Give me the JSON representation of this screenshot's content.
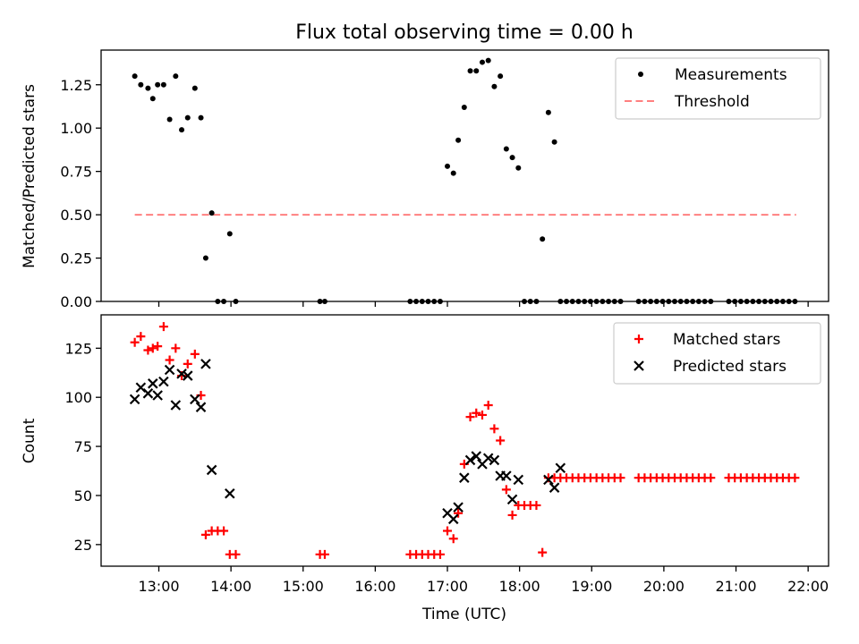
{
  "title": "Flux total observing time = 0.00 h",
  "colors": {
    "measurements": "#000000",
    "threshold": "#ff8080",
    "matched": "#ff0000",
    "predicted": "#000000"
  },
  "chart_data": [
    {
      "type": "scatter",
      "ylabel": "Matched/Predicted stars",
      "xlabel": "",
      "ylim": [
        0,
        1.45
      ],
      "yticks": [
        "0.00",
        "0.25",
        "0.50",
        "0.75",
        "1.00",
        "1.25"
      ],
      "legend": {
        "placement": "top-right",
        "entries": [
          "Measurements",
          "Threshold"
        ]
      },
      "threshold": {
        "name": "Threshold",
        "value": 0.5,
        "x_start": "12:40",
        "x_end": "21:50",
        "style": "dashed"
      },
      "series": [
        {
          "name": "Measurements",
          "marker": "dot",
          "points": [
            [
              "12:40",
              1.3
            ],
            [
              "12:45",
              1.25
            ],
            [
              "12:51",
              1.23
            ],
            [
              "12:55",
              1.17
            ],
            [
              "12:59",
              1.25
            ],
            [
              "13:04",
              1.25
            ],
            [
              "13:09",
              1.05
            ],
            [
              "13:14",
              1.3
            ],
            [
              "13:19",
              0.99
            ],
            [
              "13:24",
              1.06
            ],
            [
              "13:30",
              1.23
            ],
            [
              "13:35",
              1.06
            ],
            [
              "13:39",
              0.25
            ],
            [
              "13:44",
              0.51
            ],
            [
              "13:49",
              0.0
            ],
            [
              "13:54",
              0.0
            ],
            [
              "13:59",
              0.39
            ],
            [
              "14:04",
              0.0
            ],
            [
              "15:14",
              0.0
            ],
            [
              "15:18",
              0.0
            ],
            [
              "16:29",
              0.0
            ],
            [
              "16:34",
              0.0
            ],
            [
              "16:39",
              0.0
            ],
            [
              "16:44",
              0.0
            ],
            [
              "16:49",
              0.0
            ],
            [
              "16:54",
              0.0
            ],
            [
              "17:00",
              0.78
            ],
            [
              "17:05",
              0.74
            ],
            [
              "17:09",
              0.93
            ],
            [
              "17:14",
              1.12
            ],
            [
              "17:19",
              1.33
            ],
            [
              "17:24",
              1.33
            ],
            [
              "17:29",
              1.38
            ],
            [
              "17:34",
              1.39
            ],
            [
              "17:39",
              1.24
            ],
            [
              "17:44",
              1.3
            ],
            [
              "17:49",
              0.88
            ],
            [
              "17:54",
              0.83
            ],
            [
              "17:59",
              0.77
            ],
            [
              "18:04",
              0.0
            ],
            [
              "18:09",
              0.0
            ],
            [
              "18:14",
              0.0
            ],
            [
              "18:19",
              0.36
            ],
            [
              "18:24",
              1.09
            ],
            [
              "18:29",
              0.92
            ],
            [
              "18:34",
              0.0
            ],
            [
              "18:39",
              0.0
            ],
            [
              "18:44",
              0.0
            ],
            [
              "18:49",
              0.0
            ],
            [
              "18:54",
              0.0
            ],
            [
              "18:59",
              0.0
            ],
            [
              "19:04",
              0.0
            ],
            [
              "19:09",
              0.0
            ],
            [
              "19:14",
              0.0
            ],
            [
              "19:19",
              0.0
            ],
            [
              "19:24",
              0.0
            ],
            [
              "19:39",
              0.0
            ],
            [
              "19:44",
              0.0
            ],
            [
              "19:49",
              0.0
            ],
            [
              "19:54",
              0.0
            ],
            [
              "19:59",
              0.0
            ],
            [
              "20:04",
              0.0
            ],
            [
              "20:09",
              0.0
            ],
            [
              "20:14",
              0.0
            ],
            [
              "20:19",
              0.0
            ],
            [
              "20:24",
              0.0
            ],
            [
              "20:29",
              0.0
            ],
            [
              "20:34",
              0.0
            ],
            [
              "20:39",
              0.0
            ],
            [
              "20:54",
              0.0
            ],
            [
              "20:59",
              0.0
            ],
            [
              "21:04",
              0.0
            ],
            [
              "21:09",
              0.0
            ],
            [
              "21:14",
              0.0
            ],
            [
              "21:19",
              0.0
            ],
            [
              "21:24",
              0.0
            ],
            [
              "21:29",
              0.0
            ],
            [
              "21:34",
              0.0
            ],
            [
              "21:39",
              0.0
            ],
            [
              "21:44",
              0.0
            ],
            [
              "21:49",
              0.0
            ]
          ]
        }
      ]
    },
    {
      "type": "scatter",
      "ylabel": "Count",
      "xlabel": "Time (UTC)",
      "ylim": [
        14,
        142
      ],
      "yticks": [
        "25",
        "50",
        "75",
        "100",
        "125"
      ],
      "legend": {
        "placement": "top-right",
        "entries": [
          "Matched stars",
          "Predicted stars"
        ]
      },
      "series": [
        {
          "name": "Matched stars",
          "marker": "plus",
          "points": [
            [
              "12:40",
              128
            ],
            [
              "12:45",
              131
            ],
            [
              "12:51",
              124
            ],
            [
              "12:55",
              125
            ],
            [
              "12:59",
              126
            ],
            [
              "13:04",
              136
            ],
            [
              "13:09",
              119
            ],
            [
              "13:14",
              125
            ],
            [
              "13:19",
              111
            ],
            [
              "13:24",
              117
            ],
            [
              "13:30",
              122
            ],
            [
              "13:35",
              101
            ],
            [
              "13:39",
              30
            ],
            [
              "13:44",
              32
            ],
            [
              "13:49",
              32
            ],
            [
              "13:54",
              32
            ],
            [
              "13:59",
              20
            ],
            [
              "14:04",
              20
            ],
            [
              "15:14",
              20
            ],
            [
              "15:18",
              20
            ],
            [
              "16:29",
              20
            ],
            [
              "16:34",
              20
            ],
            [
              "16:39",
              20
            ],
            [
              "16:44",
              20
            ],
            [
              "16:49",
              20
            ],
            [
              "16:54",
              20
            ],
            [
              "17:00",
              32
            ],
            [
              "17:05",
              28
            ],
            [
              "17:09",
              41
            ],
            [
              "17:14",
              66
            ],
            [
              "17:19",
              90
            ],
            [
              "17:24",
              92
            ],
            [
              "17:29",
              91
            ],
            [
              "17:34",
              96
            ],
            [
              "17:39",
              84
            ],
            [
              "17:44",
              78
            ],
            [
              "17:49",
              53
            ],
            [
              "17:54",
              40
            ],
            [
              "17:59",
              45
            ],
            [
              "18:04",
              45
            ],
            [
              "18:09",
              45
            ],
            [
              "18:14",
              45
            ],
            [
              "18:19",
              21
            ],
            [
              "18:24",
              59
            ],
            [
              "18:29",
              59
            ],
            [
              "18:34",
              59
            ],
            [
              "18:39",
              59
            ],
            [
              "18:44",
              59
            ],
            [
              "18:49",
              59
            ],
            [
              "18:54",
              59
            ],
            [
              "18:59",
              59
            ],
            [
              "19:04",
              59
            ],
            [
              "19:09",
              59
            ],
            [
              "19:14",
              59
            ],
            [
              "19:19",
              59
            ],
            [
              "19:24",
              59
            ],
            [
              "19:39",
              59
            ],
            [
              "19:44",
              59
            ],
            [
              "19:49",
              59
            ],
            [
              "19:54",
              59
            ],
            [
              "19:59",
              59
            ],
            [
              "20:04",
              59
            ],
            [
              "20:09",
              59
            ],
            [
              "20:14",
              59
            ],
            [
              "20:19",
              59
            ],
            [
              "20:24",
              59
            ],
            [
              "20:29",
              59
            ],
            [
              "20:34",
              59
            ],
            [
              "20:39",
              59
            ],
            [
              "20:54",
              59
            ],
            [
              "20:59",
              59
            ],
            [
              "21:04",
              59
            ],
            [
              "21:09",
              59
            ],
            [
              "21:14",
              59
            ],
            [
              "21:19",
              59
            ],
            [
              "21:24",
              59
            ],
            [
              "21:29",
              59
            ],
            [
              "21:34",
              59
            ],
            [
              "21:39",
              59
            ],
            [
              "21:44",
              59
            ],
            [
              "21:49",
              59
            ]
          ]
        },
        {
          "name": "Predicted stars",
          "marker": "x",
          "points": [
            [
              "12:40",
              99
            ],
            [
              "12:45",
              105
            ],
            [
              "12:51",
              102
            ],
            [
              "12:55",
              107
            ],
            [
              "12:59",
              101
            ],
            [
              "13:04",
              108
            ],
            [
              "13:09",
              114
            ],
            [
              "13:14",
              96
            ],
            [
              "13:19",
              112
            ],
            [
              "13:24",
              111
            ],
            [
              "13:30",
              99
            ],
            [
              "13:35",
              95
            ],
            [
              "13:39",
              117
            ],
            [
              "13:44",
              63
            ],
            [
              "13:59",
              51
            ],
            [
              "17:00",
              41
            ],
            [
              "17:05",
              38
            ],
            [
              "17:09",
              44
            ],
            [
              "17:14",
              59
            ],
            [
              "17:19",
              68
            ],
            [
              "17:24",
              70
            ],
            [
              "17:29",
              66
            ],
            [
              "17:34",
              69
            ],
            [
              "17:39",
              68
            ],
            [
              "17:44",
              60
            ],
            [
              "17:49",
              60
            ],
            [
              "17:54",
              48
            ],
            [
              "17:59",
              58
            ],
            [
              "18:24",
              58
            ],
            [
              "18:29",
              54
            ],
            [
              "18:34",
              64
            ]
          ]
        }
      ]
    }
  ],
  "x_axis": {
    "ticks": [
      "13:00",
      "14:00",
      "15:00",
      "16:00",
      "17:00",
      "18:00",
      "19:00",
      "20:00",
      "21:00",
      "22:00"
    ],
    "range": [
      "12:12",
      "22:17"
    ]
  }
}
